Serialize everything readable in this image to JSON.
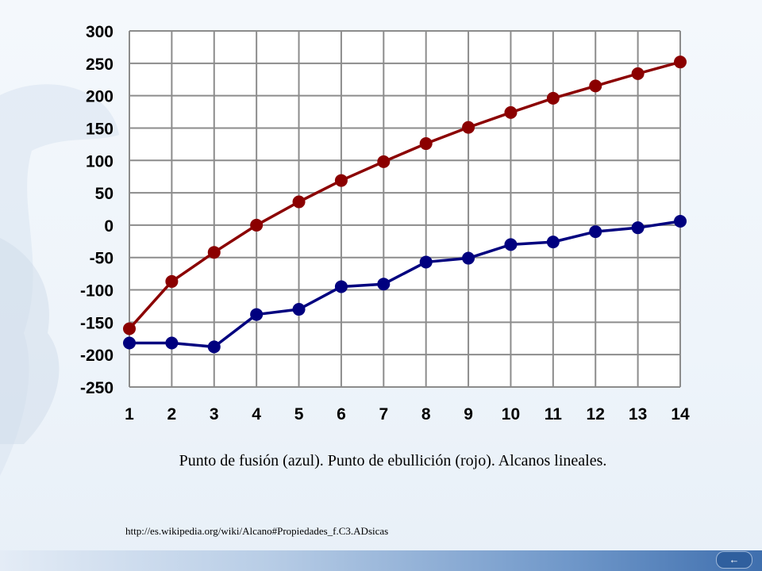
{
  "chart_data": {
    "type": "line",
    "x": [
      1,
      2,
      3,
      4,
      5,
      6,
      7,
      8,
      9,
      10,
      11,
      12,
      13,
      14
    ],
    "xlim": [
      1,
      14
    ],
    "ylim": [
      -250,
      300
    ],
    "yticks": [
      300,
      250,
      200,
      150,
      100,
      50,
      0,
      -50,
      -100,
      -150,
      -200,
      -250
    ],
    "grid": true,
    "series": [
      {
        "color": "#8b0000",
        "values": [
          -160,
          -87,
          -42,
          0,
          36,
          69,
          98,
          126,
          151,
          174,
          196,
          215,
          234,
          252
        ]
      },
      {
        "color": "#00007f",
        "values": [
          -182,
          -182,
          -188,
          -138,
          -130,
          -95,
          -91,
          -57,
          -51,
          -30,
          -26,
          -10,
          -4,
          6
        ]
      }
    ]
  },
  "caption": "Punto de fusión (azul). Punto de ebullición (rojo). Alcanos lineales.",
  "source_url": "http://es.wikipedia.org/wiki/Alcano#Propiedades_f.C3.ADsicas",
  "nav_icon": "back-arrow-icon"
}
